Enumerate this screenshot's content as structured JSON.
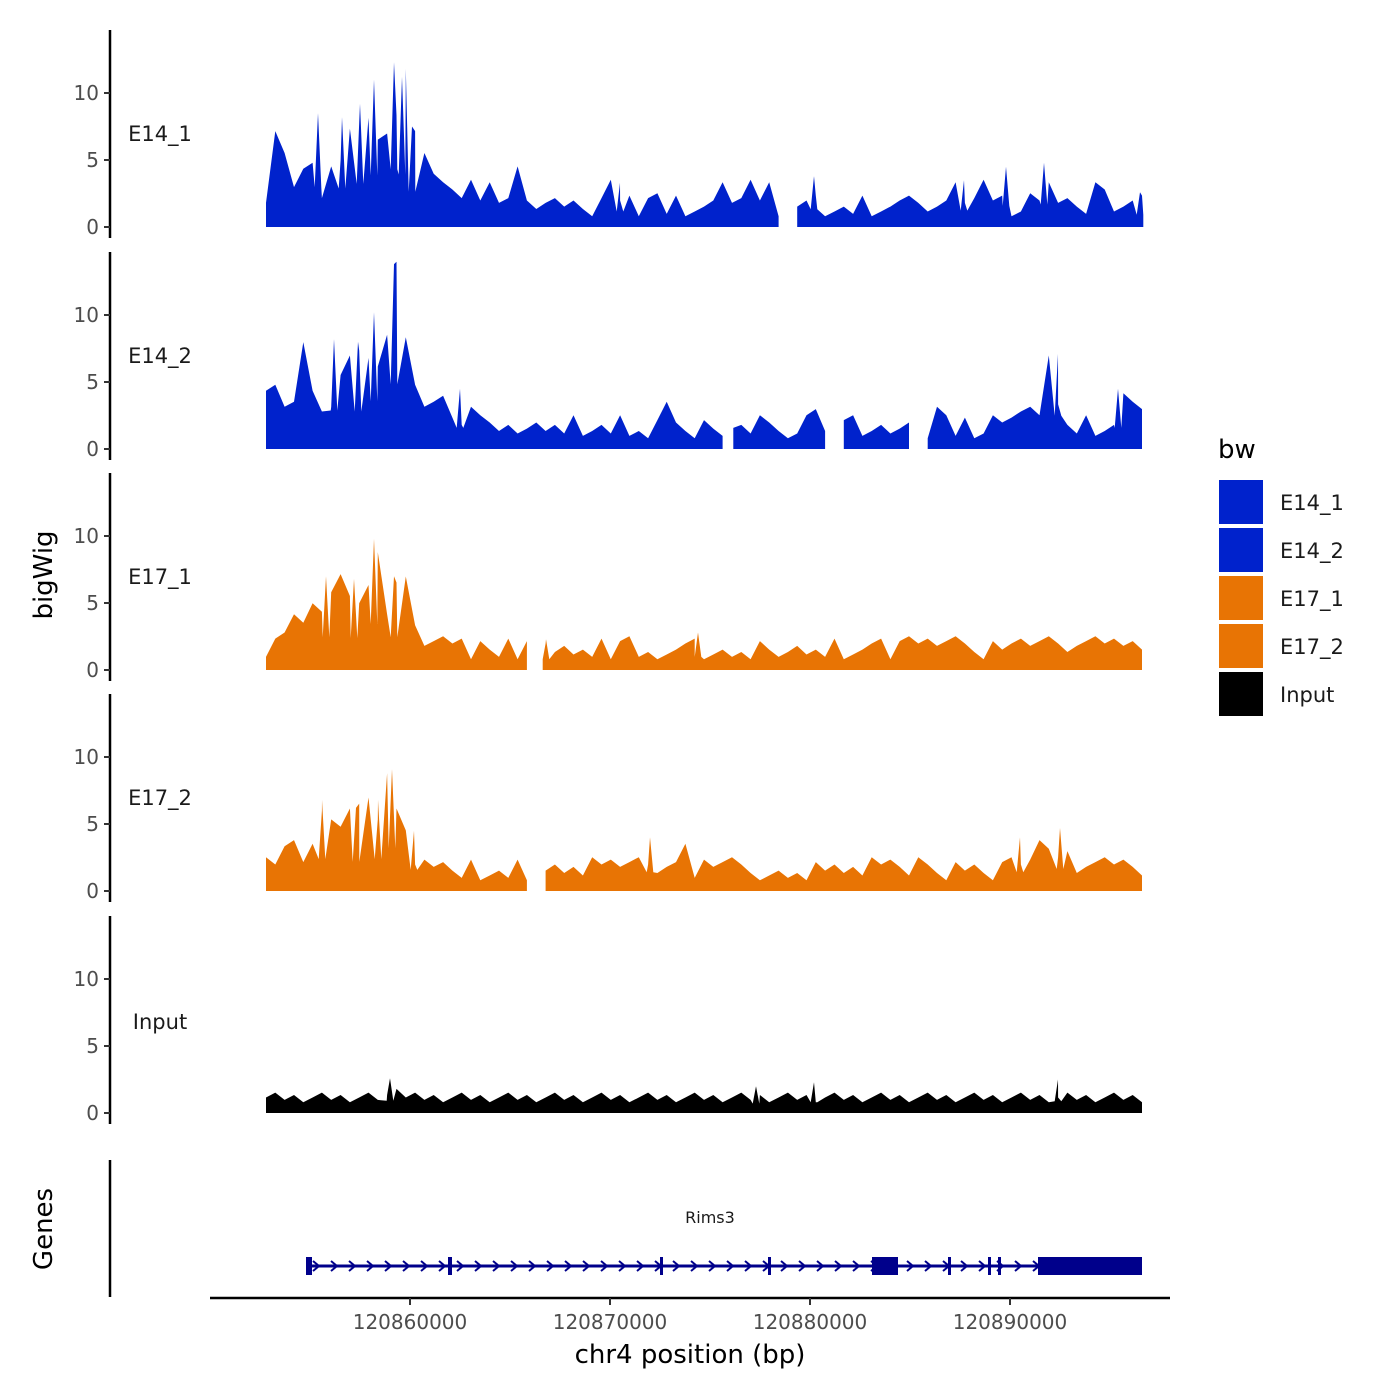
{
  "chart_data": {
    "type": "area",
    "title": "",
    "ylabel": "bigWig",
    "xlabel": "chr4 position (bp)",
    "xlim": [
      120850000,
      120898000
    ],
    "data_range": [
      120852800,
      120896600
    ],
    "ylim": [
      0,
      14
    ],
    "y_ticks": [
      0,
      5,
      10
    ],
    "x_ticks": [
      120860000,
      120870000,
      120880000,
      120890000
    ],
    "legend": {
      "title": "bw",
      "position": "right",
      "entries": [
        {
          "name": "E14_1",
          "color": "#0022CC"
        },
        {
          "name": "E14_2",
          "color": "#0022CC"
        },
        {
          "name": "E17_1",
          "color": "#E87404"
        },
        {
          "name": "E17_2",
          "color": "#E87404"
        },
        {
          "name": "Input",
          "color": "#000000"
        }
      ]
    },
    "series": [
      {
        "name": "E14_1",
        "color": "#0022CC",
        "values": [
          2,
          7,
          5,
          3,
          4,
          5,
          2,
          4,
          5,
          7,
          8,
          8,
          6,
          7,
          8,
          12,
          7,
          5,
          4,
          3,
          3,
          2,
          3,
          2,
          3,
          2,
          2,
          4,
          2,
          1,
          2,
          2,
          1,
          2,
          1,
          1,
          2,
          3,
          2,
          2,
          1,
          2,
          2,
          1,
          2,
          1,
          1,
          1,
          2,
          3,
          2,
          2,
          3,
          2,
          3,
          1,
          1,
          1,
          2,
          2,
          1,
          1,
          1,
          1,
          2,
          1,
          1,
          1,
          2,
          2,
          2,
          1,
          1,
          2,
          3,
          2,
          2,
          3,
          2,
          2,
          1,
          1,
          2,
          2,
          3,
          2,
          2,
          1,
          1,
          3,
          3,
          1,
          1,
          2,
          2
        ],
        "peaks": [
          [
            120855400,
            8.5
          ],
          [
            120856600,
            8.2
          ],
          [
            120857500,
            9.2
          ],
          [
            120858200,
            11
          ],
          [
            120859200,
            12.3
          ],
          [
            120859600,
            11.2
          ],
          [
            120860100,
            7.5
          ],
          [
            120870500,
            3.3
          ],
          [
            120880200,
            3.8
          ],
          [
            120887700,
            3.5
          ],
          [
            120889800,
            4.5
          ],
          [
            120891700,
            4.8
          ],
          [
            120896500,
            2.6
          ]
        ],
        "gaps": [
          [
            120878800,
            120879300
          ]
        ]
      },
      {
        "name": "E14_2",
        "color": "#0022CC",
        "values": [
          4,
          5,
          3,
          3,
          8,
          4,
          3,
          3,
          5,
          7,
          7,
          7,
          6,
          8,
          14,
          8,
          5,
          3,
          3,
          4,
          2,
          2,
          3,
          2,
          2,
          1,
          2,
          1,
          1,
          2,
          1,
          2,
          1,
          2,
          1,
          1,
          2,
          1,
          2,
          1,
          1,
          1,
          2,
          3,
          2,
          1,
          1,
          2,
          1,
          1,
          1,
          2,
          1,
          2,
          2,
          1,
          1,
          1,
          2,
          3,
          1,
          1,
          2,
          2,
          1,
          1,
          2,
          1,
          1,
          2,
          1,
          1,
          3,
          2,
          1,
          2,
          1,
          1,
          2,
          2,
          2,
          3,
          3,
          2,
          7,
          3,
          2,
          1,
          2,
          1,
          1,
          2,
          4,
          3,
          3
        ],
        "peaks": [
          [
            120856200,
            8.2
          ],
          [
            120857400,
            8.0
          ],
          [
            120858200,
            10.2
          ],
          [
            120859200,
            13.8
          ],
          [
            120862500,
            4.5
          ],
          [
            120876000,
            4.5
          ],
          [
            120892400,
            7.1
          ],
          [
            120895400,
            4.5
          ]
        ],
        "gaps": [
          [
            120875800,
            120876100
          ],
          [
            120881200,
            120881500
          ],
          [
            120885400,
            120885700
          ]
        ]
      },
      {
        "name": "E17_1",
        "color": "#E87404",
        "values": [
          1,
          2,
          3,
          4,
          3,
          5,
          4,
          6,
          7,
          5,
          5,
          6,
          9,
          4,
          6,
          7,
          3,
          2,
          2,
          2,
          2,
          2,
          1,
          2,
          1,
          1,
          2,
          1,
          2,
          2,
          2,
          1,
          2,
          1,
          1,
          1,
          2,
          1,
          2,
          2,
          1,
          1,
          1,
          1,
          1,
          2,
          2,
          1,
          1,
          1,
          1,
          1,
          1,
          2,
          1,
          1,
          1,
          2,
          1,
          1,
          1,
          2,
          1,
          1,
          1,
          2,
          2,
          1,
          2,
          2,
          2,
          2,
          2,
          2,
          2,
          2,
          1,
          1,
          2,
          1,
          2,
          2,
          2,
          2,
          2,
          2,
          1,
          2,
          2,
          2,
          2,
          2,
          2,
          2,
          1
        ],
        "peaks": [
          [
            120855800,
            7.0
          ],
          [
            120857200,
            6.8
          ],
          [
            120858200,
            9.8
          ],
          [
            120859200,
            7.0
          ],
          [
            120866800,
            2.3
          ],
          [
            120874400,
            2.8
          ]
        ],
        "gaps": [
          [
            120866200,
            120866600
          ]
        ]
      },
      {
        "name": "E17_2",
        "color": "#E87404",
        "values": [
          2,
          2,
          3,
          4,
          2,
          3,
          6,
          5,
          5,
          6,
          6,
          7,
          5,
          9,
          6,
          4,
          2,
          2,
          2,
          2,
          1,
          1,
          2,
          1,
          1,
          1,
          1,
          2,
          1,
          1,
          1,
          2,
          1,
          2,
          1,
          2,
          2,
          2,
          2,
          2,
          2,
          2,
          1,
          2,
          2,
          3,
          1,
          2,
          2,
          2,
          2,
          2,
          1,
          1,
          1,
          1,
          1,
          1,
          1,
          2,
          1,
          2,
          1,
          2,
          1,
          2,
          2,
          2,
          2,
          1,
          2,
          2,
          1,
          1,
          2,
          1,
          2,
          1,
          1,
          2,
          2,
          2,
          2,
          4,
          3,
          2,
          3,
          1,
          2,
          2,
          2,
          2,
          2,
          2,
          1
        ],
        "peaks": [
          [
            120855600,
            6.8
          ],
          [
            120857300,
            6.2
          ],
          [
            120858400,
            6.8
          ],
          [
            120859100,
            9.1
          ],
          [
            120860200,
            4.5
          ],
          [
            120872000,
            4.0
          ],
          [
            120890500,
            4.0
          ],
          [
            120892500,
            4.7
          ]
        ],
        "gaps": [
          [
            120866200,
            120866600
          ]
        ]
      },
      {
        "name": "Input",
        "color": "#000000",
        "values": [
          1,
          1,
          1,
          1,
          1,
          1,
          1,
          1,
          1,
          1,
          1,
          1,
          1,
          1,
          2,
          1,
          1,
          1,
          1,
          1,
          1,
          1,
          1,
          1,
          1,
          1,
          1,
          1,
          1,
          1,
          1,
          1,
          1,
          1,
          1,
          1,
          1,
          1,
          1,
          1,
          1,
          1,
          1,
          1,
          1,
          1,
          1,
          1,
          1,
          1,
          1,
          1,
          1,
          1,
          1,
          1,
          1,
          1,
          1,
          1,
          1,
          1,
          1,
          1,
          1,
          1,
          1,
          1,
          1,
          1,
          1,
          1,
          1,
          1,
          1,
          1,
          1,
          1,
          1,
          1,
          1,
          1,
          1,
          1,
          1,
          1,
          1,
          1,
          1,
          1,
          1,
          1,
          1,
          1,
          1
        ],
        "peaks": [
          [
            120859000,
            2.6
          ],
          [
            120877300,
            2.0
          ],
          [
            120880200,
            2.3
          ],
          [
            120892400,
            2.5
          ]
        ],
        "gaps": []
      }
    ],
    "genes_panel": {
      "label": "Genes",
      "gene_name": "Rims3",
      "gene_start": 120854800,
      "gene_end": 120896600,
      "strand": "+",
      "color": "#00008B",
      "exons": [
        [
          120854800,
          120855100
        ],
        [
          120861900,
          120862100
        ],
        [
          120872500,
          120872650
        ],
        [
          120877900,
          120878050
        ],
        [
          120883100,
          120884400
        ],
        [
          120886900,
          120887000
        ],
        [
          120888900,
          120889050
        ],
        [
          120889400,
          120889550
        ],
        [
          120891400,
          120896600
        ]
      ]
    }
  }
}
